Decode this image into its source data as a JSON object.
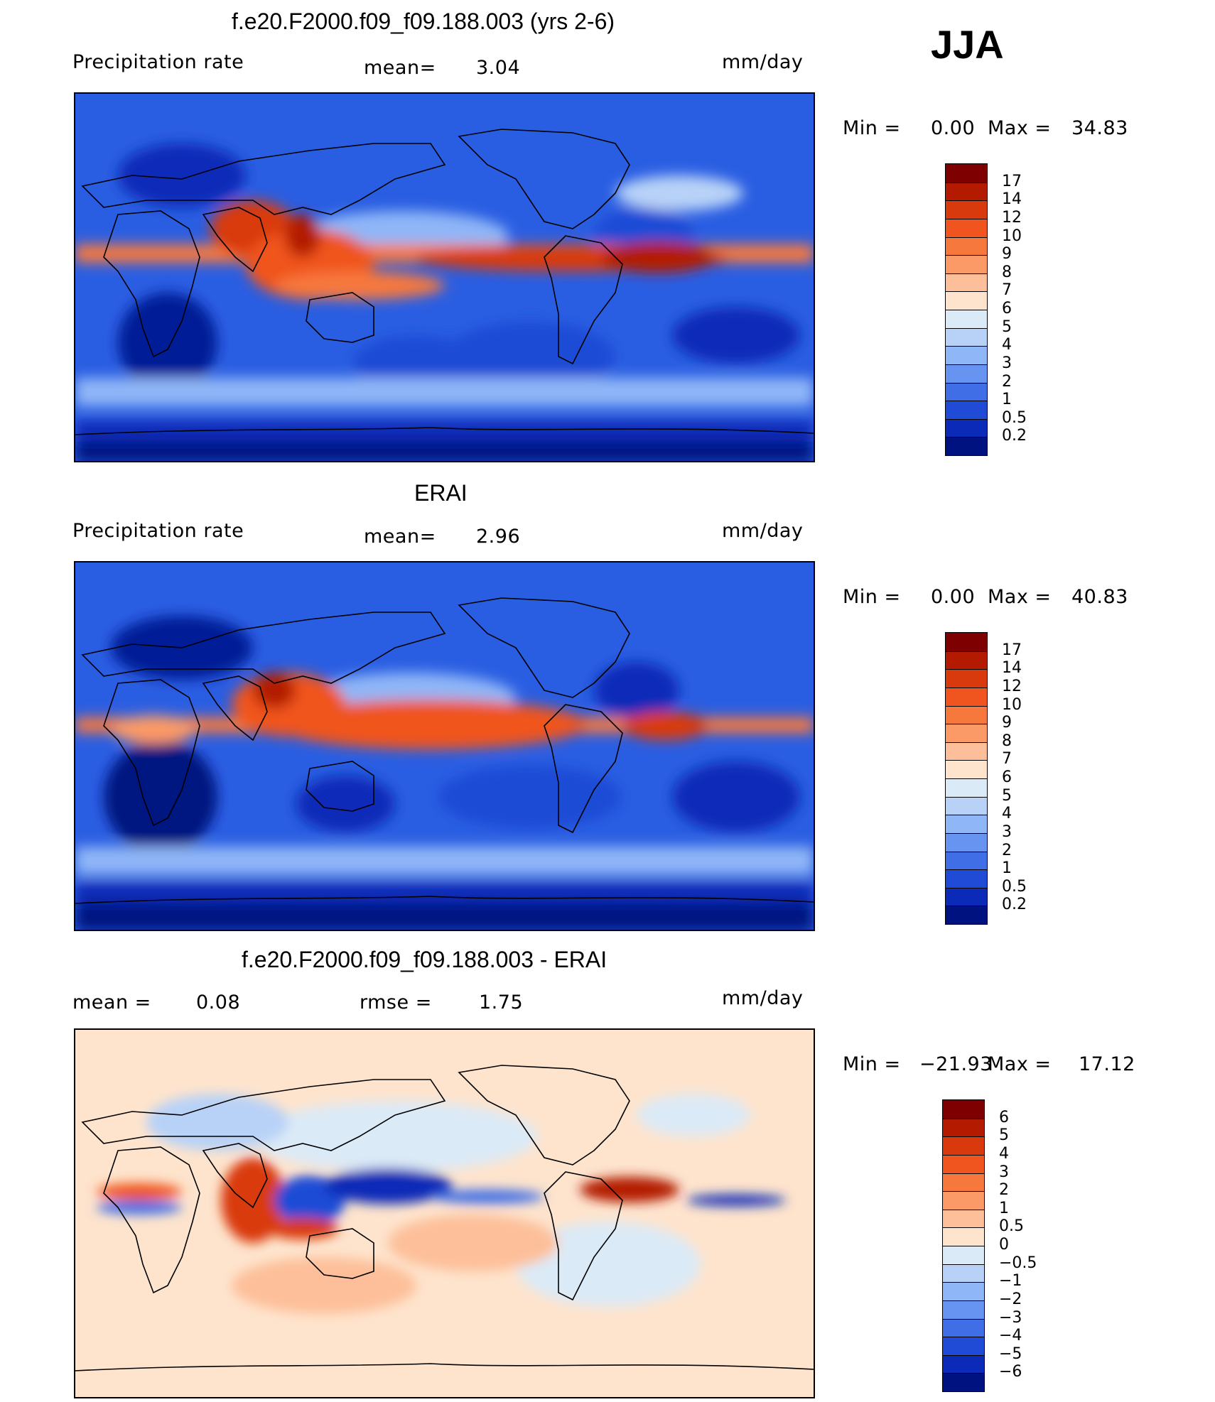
{
  "season": "JJA",
  "panels": [
    {
      "id": "model",
      "title": "f.e20.F2000.f09_f09.188.003 (yrs 2-6)",
      "left_label": "Precipitation  rate",
      "mid_label": "mean=",
      "mid_value": "3.04",
      "units": "mm/day",
      "min_label": "Min  =",
      "min_value": "0.00",
      "max_label": "Max  =",
      "max_value": "34.83",
      "colorbar": {
        "levels": [
          "17",
          "14",
          "12",
          "10",
          "9",
          "8",
          "7",
          "6",
          "5",
          "4",
          "3",
          "2",
          "1",
          "0.5",
          "0.2"
        ],
        "colors": [
          "#7f0000",
          "#b31a00",
          "#d93a0d",
          "#f0541f",
          "#f7783c",
          "#fb9a66",
          "#fdbf9a",
          "#fee4cd",
          "#dbeaf7",
          "#b8d2f7",
          "#8fb6f7",
          "#6794f0",
          "#3f6ee6",
          "#1f4bd6",
          "#0b2ab8",
          "#001280"
        ]
      }
    },
    {
      "id": "obs",
      "title": "ERAI",
      "left_label": "Precipitation  rate",
      "mid_label": "mean=",
      "mid_value": "2.96",
      "units": "mm/day",
      "min_label": "Min  =",
      "min_value": "0.00",
      "max_label": "Max  =",
      "max_value": "40.83",
      "colorbar": {
        "levels": [
          "17",
          "14",
          "12",
          "10",
          "9",
          "8",
          "7",
          "6",
          "5",
          "4",
          "3",
          "2",
          "1",
          "0.5",
          "0.2"
        ],
        "colors": [
          "#7f0000",
          "#b31a00",
          "#d93a0d",
          "#f0541f",
          "#f7783c",
          "#fb9a66",
          "#fdbf9a",
          "#fee4cd",
          "#dbeaf7",
          "#b8d2f7",
          "#8fb6f7",
          "#6794f0",
          "#3f6ee6",
          "#1f4bd6",
          "#0b2ab8",
          "#001280"
        ]
      }
    },
    {
      "id": "diff",
      "title": "f.e20.F2000.f09_f09.188.003 - ERAI",
      "left_label": "mean  =",
      "left_value": "0.08",
      "mid_label": "rmse  =",
      "mid_value": "1.75",
      "units": "mm/day",
      "min_label": "Min  =",
      "min_value": "−21.93",
      "max_label": "Max  =",
      "max_value": "17.12",
      "colorbar": {
        "levels": [
          "6",
          "5",
          "4",
          "3",
          "2",
          "1",
          "0.5",
          "0",
          "−0.5",
          "−1",
          "−2",
          "−3",
          "−4",
          "−5",
          "−6"
        ],
        "colors": [
          "#7f0000",
          "#b31a00",
          "#d93a0d",
          "#f0541f",
          "#f7783c",
          "#fb9a66",
          "#fdbf9a",
          "#fee4cd",
          "#dbeaf7",
          "#b8d2f7",
          "#8fb6f7",
          "#6794f0",
          "#3f6ee6",
          "#1f4bd6",
          "#0b2ab8",
          "#001280"
        ]
      }
    }
  ],
  "chart_data": [
    {
      "type": "heatmap",
      "title": "f.e20.F2000.f09_f09.188.003 (yrs 2-6)",
      "variable": "Precipitation  rate",
      "units": "mm/day",
      "mean": 3.04,
      "min": 0.0,
      "max": 34.83,
      "contour_levels": [
        0.2,
        0.5,
        1,
        2,
        3,
        4,
        5,
        6,
        7,
        8,
        9,
        10,
        12,
        14,
        17
      ]
    },
    {
      "type": "heatmap",
      "title": "ERAI",
      "variable": "Precipitation  rate",
      "units": "mm/day",
      "mean": 2.96,
      "min": 0.0,
      "max": 40.83,
      "contour_levels": [
        0.2,
        0.5,
        1,
        2,
        3,
        4,
        5,
        6,
        7,
        8,
        9,
        10,
        12,
        14,
        17
      ]
    },
    {
      "type": "heatmap",
      "title": "f.e20.F2000.f09_f09.188.003 - ERAI",
      "units": "mm/day",
      "mean": 0.08,
      "rmse": 1.75,
      "min": -21.93,
      "max": 17.12,
      "contour_levels": [
        -6,
        -5,
        -4,
        -3,
        -2,
        -1,
        -0.5,
        0,
        0.5,
        1,
        2,
        3,
        4,
        5,
        6
      ]
    }
  ]
}
